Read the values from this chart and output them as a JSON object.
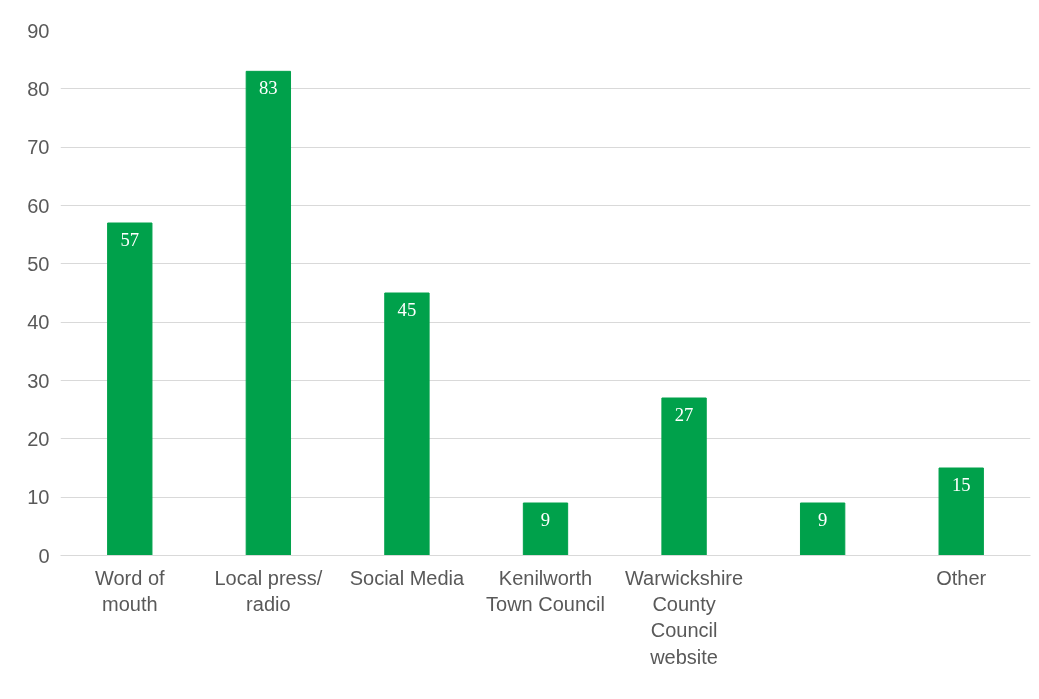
{
  "chart_data": {
    "type": "bar",
    "categories": [
      "Word of\nmouth",
      "Local press/\nradio",
      "Social Media",
      "Kenilworth\nTown Council",
      "Warwickshire\nCounty\nCouncil\nwebsite",
      null,
      "Other"
    ],
    "values": [
      57,
      83,
      45,
      9,
      27,
      9,
      15
    ],
    "color": "#00a14b",
    "ylim": [
      0,
      90
    ],
    "yticks": [
      0,
      10,
      20,
      30,
      40,
      50,
      60,
      70,
      80,
      90
    ],
    "grid": "y",
    "data_labels": true
  }
}
